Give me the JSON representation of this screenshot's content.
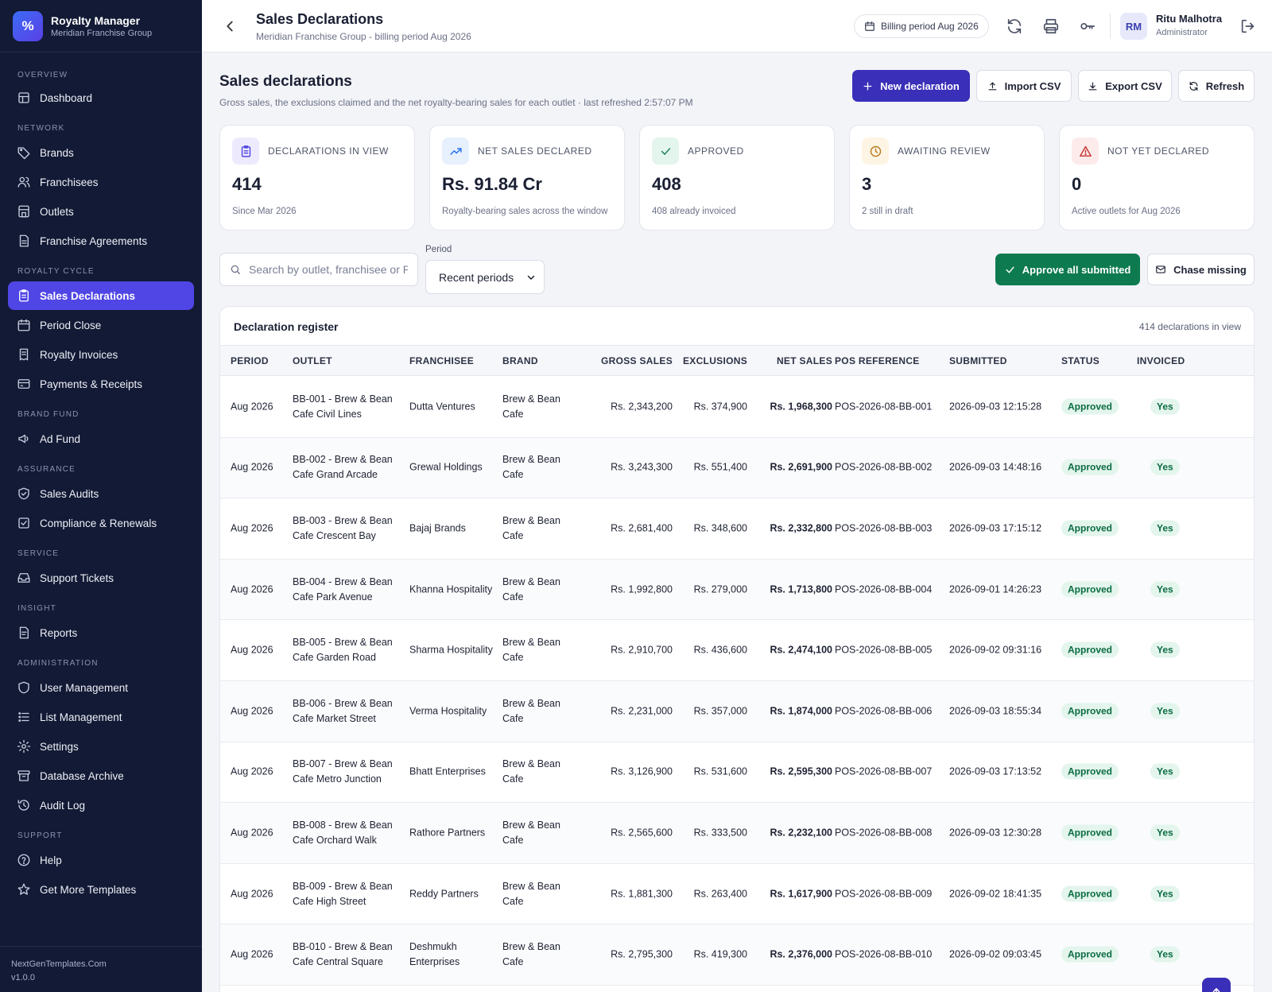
{
  "app": {
    "name": "Royalty Manager",
    "org": "Meridian Franchise Group",
    "logo_glyph": "%"
  },
  "sidebar": {
    "sections": [
      {
        "label": "OVERVIEW",
        "items": [
          {
            "label": "Dashboard",
            "icon": "dashboard-icon"
          }
        ]
      },
      {
        "label": "NETWORK",
        "items": [
          {
            "label": "Brands",
            "icon": "tag-icon"
          },
          {
            "label": "Franchisees",
            "icon": "users-icon"
          },
          {
            "label": "Outlets",
            "icon": "store-icon"
          },
          {
            "label": "Franchise Agreements",
            "icon": "document-icon"
          }
        ]
      },
      {
        "label": "ROYALTY CYCLE",
        "items": [
          {
            "label": "Sales Declarations",
            "icon": "clipboard-icon",
            "active": true
          },
          {
            "label": "Period Close",
            "icon": "calendar-icon"
          },
          {
            "label": "Royalty Invoices",
            "icon": "receipt-icon"
          },
          {
            "label": "Payments & Receipts",
            "icon": "credit-card-icon"
          }
        ]
      },
      {
        "label": "BRAND FUND",
        "items": [
          {
            "label": "Ad Fund",
            "icon": "megaphone-icon"
          }
        ]
      },
      {
        "label": "ASSURANCE",
        "items": [
          {
            "label": "Sales Audits",
            "icon": "shield-check-icon"
          },
          {
            "label": "Compliance & Renewals",
            "icon": "check-square-icon"
          }
        ]
      },
      {
        "label": "SERVICE",
        "items": [
          {
            "label": "Support Tickets",
            "icon": "inbox-icon"
          }
        ]
      },
      {
        "label": "INSIGHT",
        "items": [
          {
            "label": "Reports",
            "icon": "report-icon"
          }
        ]
      },
      {
        "label": "ADMINISTRATION",
        "items": [
          {
            "label": "User Management",
            "icon": "shield-icon"
          },
          {
            "label": "List Management",
            "icon": "list-icon"
          },
          {
            "label": "Settings",
            "icon": "gear-icon"
          },
          {
            "label": "Database Archive",
            "icon": "archive-icon"
          },
          {
            "label": "Audit Log",
            "icon": "history-icon"
          }
        ]
      },
      {
        "label": "SUPPORT",
        "items": [
          {
            "label": "Help",
            "icon": "help-icon"
          },
          {
            "label": "Get More Templates",
            "icon": "star-icon"
          }
        ]
      }
    ],
    "footer": {
      "site": "NextGenTemplates.Com",
      "version": "v1.0.0"
    }
  },
  "topbar": {
    "title": "Sales Declarations",
    "subtitle": "Meridian Franchise Group - billing period Aug 2026",
    "billing_pill": "Billing period Aug 2026",
    "user": {
      "initials": "RM",
      "name": "Ritu Malhotra",
      "role": "Administrator"
    }
  },
  "header": {
    "title": "Sales declarations",
    "subtitle": "Gross sales, the exclusions claimed and the net royalty-bearing sales for each outlet · last refreshed 2:57:07 PM",
    "buttons": {
      "new": "New declaration",
      "import": "Import CSV",
      "export": "Export CSV",
      "refresh": "Refresh"
    }
  },
  "stats": [
    {
      "label": "DECLARATIONS IN VIEW",
      "value": "414",
      "foot": "Since Mar 2026",
      "icon": "clipboard-icon",
      "accent": "#4f46e5",
      "bg": "#eceafc"
    },
    {
      "label": "NET SALES DECLARED",
      "value": "Rs. 91.84 Cr",
      "foot": "Royalty-bearing sales across the window",
      "icon": "trend-up-icon",
      "accent": "#1f6feb",
      "bg": "#e7f0fd"
    },
    {
      "label": "APPROVED",
      "value": "408",
      "foot": "408 already invoiced",
      "icon": "check-icon",
      "accent": "#0d7a4f",
      "bg": "#e3f5ec"
    },
    {
      "label": "AWAITING REVIEW",
      "value": "3",
      "foot": "2 still in draft",
      "icon": "clock-icon",
      "accent": "#b7791f",
      "bg": "#fdf4e3"
    },
    {
      "label": "NOT YET DECLARED",
      "value": "0",
      "foot": "Active outlets for Aug 2026",
      "icon": "alert-icon",
      "accent": "#c53030",
      "bg": "#fdeaea"
    }
  ],
  "filters": {
    "search_placeholder": "Search by outlet, franchisee or POS",
    "period_label": "Period",
    "period_value": "Recent periods",
    "approve_all": "Approve all submitted",
    "chase_missing": "Chase missing"
  },
  "table": {
    "title": "Declaration register",
    "count": "414 declarations in view",
    "columns": [
      "PERIOD",
      "OUTLET",
      "FRANCHISEE",
      "BRAND",
      "GROSS SALES",
      "EXCLUSIONS",
      "NET SALES",
      "POS REFERENCE",
      "SUBMITTED",
      "STATUS",
      "INVOICED"
    ],
    "rows": [
      {
        "period": "Aug 2026",
        "outlet": "BB-001 - Brew & Bean Cafe Civil Lines",
        "franchisee": "Dutta Ventures",
        "brand": "Brew & Bean Cafe",
        "gross": "Rs. 2,343,200",
        "excl": "Rs. 374,900",
        "net": "Rs. 1,968,300",
        "pos": "POS-2026-08-BB-001",
        "submitted": "2026-09-03 12:15:28",
        "status": "Approved",
        "invoiced": "Yes"
      },
      {
        "period": "Aug 2026",
        "outlet": "BB-002 - Brew & Bean Cafe Grand Arcade",
        "franchisee": "Grewal Holdings",
        "brand": "Brew & Bean Cafe",
        "gross": "Rs. 3,243,300",
        "excl": "Rs. 551,400",
        "net": "Rs. 2,691,900",
        "pos": "POS-2026-08-BB-002",
        "submitted": "2026-09-03 14:48:16",
        "status": "Approved",
        "invoiced": "Yes"
      },
      {
        "period": "Aug 2026",
        "outlet": "BB-003 - Brew & Bean Cafe Crescent Bay",
        "franchisee": "Bajaj Brands",
        "brand": "Brew & Bean Cafe",
        "gross": "Rs. 2,681,400",
        "excl": "Rs. 348,600",
        "net": "Rs. 2,332,800",
        "pos": "POS-2026-08-BB-003",
        "submitted": "2026-09-03 17:15:12",
        "status": "Approved",
        "invoiced": "Yes"
      },
      {
        "period": "Aug 2026",
        "outlet": "BB-004 - Brew & Bean Cafe Park Avenue",
        "franchisee": "Khanna Hospitality",
        "brand": "Brew & Bean Cafe",
        "gross": "Rs. 1,992,800",
        "excl": "Rs. 279,000",
        "net": "Rs. 1,713,800",
        "pos": "POS-2026-08-BB-004",
        "submitted": "2026-09-01 14:26:23",
        "status": "Approved",
        "invoiced": "Yes"
      },
      {
        "period": "Aug 2026",
        "outlet": "BB-005 - Brew & Bean Cafe Garden Road",
        "franchisee": "Sharma Hospitality",
        "brand": "Brew & Bean Cafe",
        "gross": "Rs. 2,910,700",
        "excl": "Rs. 436,600",
        "net": "Rs. 2,474,100",
        "pos": "POS-2026-08-BB-005",
        "submitted": "2026-09-02 09:31:16",
        "status": "Approved",
        "invoiced": "Yes"
      },
      {
        "period": "Aug 2026",
        "outlet": "BB-006 - Brew & Bean Cafe Market Street",
        "franchisee": "Verma Hospitality",
        "brand": "Brew & Bean Cafe",
        "gross": "Rs. 2,231,000",
        "excl": "Rs. 357,000",
        "net": "Rs. 1,874,000",
        "pos": "POS-2026-08-BB-006",
        "submitted": "2026-09-03 18:55:34",
        "status": "Approved",
        "invoiced": "Yes"
      },
      {
        "period": "Aug 2026",
        "outlet": "BB-007 - Brew & Bean Cafe Metro Junction",
        "franchisee": "Bhatt Enterprises",
        "brand": "Brew & Bean Cafe",
        "gross": "Rs. 3,126,900",
        "excl": "Rs. 531,600",
        "net": "Rs. 2,595,300",
        "pos": "POS-2026-08-BB-007",
        "submitted": "2026-09-03 17:13:52",
        "status": "Approved",
        "invoiced": "Yes"
      },
      {
        "period": "Aug 2026",
        "outlet": "BB-008 - Brew & Bean Cafe Orchard Walk",
        "franchisee": "Rathore Partners",
        "brand": "Brew & Bean Cafe",
        "gross": "Rs. 2,565,600",
        "excl": "Rs. 333,500",
        "net": "Rs. 2,232,100",
        "pos": "POS-2026-08-BB-008",
        "submitted": "2026-09-03 12:30:28",
        "status": "Approved",
        "invoiced": "Yes"
      },
      {
        "period": "Aug 2026",
        "outlet": "BB-009 - Brew & Bean Cafe High Street",
        "franchisee": "Reddy Partners",
        "brand": "Brew & Bean Cafe",
        "gross": "Rs. 1,881,300",
        "excl": "Rs. 263,400",
        "net": "Rs. 1,617,900",
        "pos": "POS-2026-08-BB-009",
        "submitted": "2026-09-02 18:41:35",
        "status": "Approved",
        "invoiced": "Yes"
      },
      {
        "period": "Aug 2026",
        "outlet": "BB-010 - Brew & Bean Cafe Central Square",
        "franchisee": "Deshmukh Enterprises",
        "brand": "Brew & Bean Cafe",
        "gross": "Rs. 2,795,300",
        "excl": "Rs. 419,300",
        "net": "Rs. 2,376,000",
        "pos": "POS-2026-08-BB-010",
        "submitted": "2026-09-02 09:03:45",
        "status": "Approved",
        "invoiced": "Yes"
      }
    ]
  }
}
